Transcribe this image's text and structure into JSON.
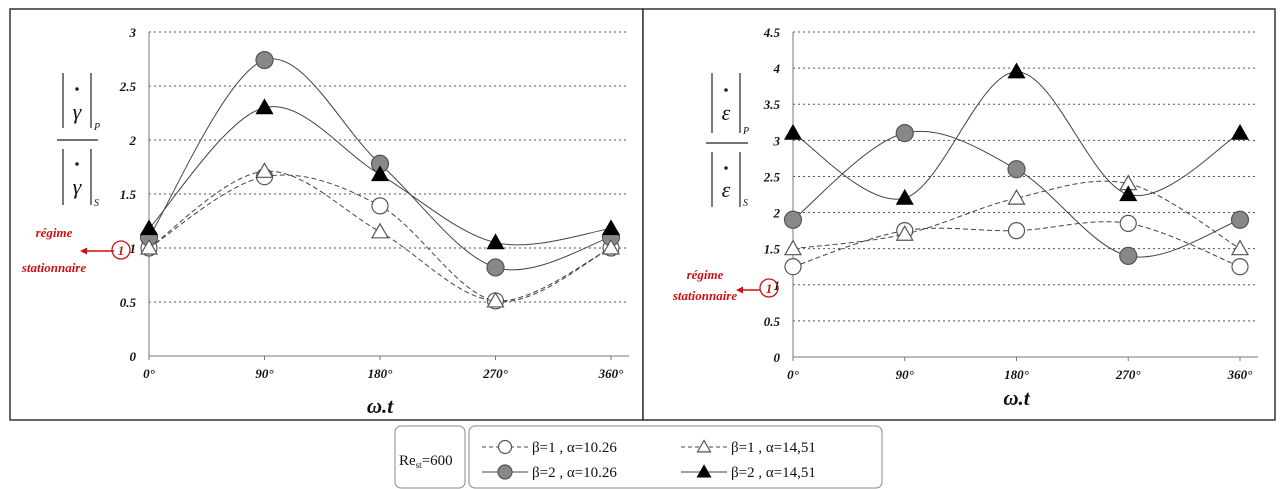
{
  "chart_data": [
    {
      "type": "line",
      "categories": [
        "0°",
        "90°",
        "180°",
        "270°",
        "360°"
      ],
      "xlabel": "ω.t",
      "ylabel": {
        "symbol": "γ",
        "top_sub": "P",
        "bottom_sub": "S"
      },
      "ylim": [
        0,
        3
      ],
      "yticks": [
        "0",
        "0.5",
        "1",
        "1.5",
        "2",
        "2.5",
        "3"
      ],
      "grid": "horizontal dotted",
      "series": [
        {
          "name": "β=1 , α=10.26",
          "values": [
            1.0,
            1.66,
            1.39,
            0.51,
            1.0
          ]
        },
        {
          "name": "β=2 , α=10.26",
          "values": [
            1.1,
            2.74,
            1.78,
            0.82,
            1.1
          ]
        },
        {
          "name": "β=1 , α=14,51",
          "values": [
            1.0,
            1.71,
            1.15,
            0.51,
            1.0
          ]
        },
        {
          "name": "β=2 , α=14,51",
          "values": [
            1.18,
            2.3,
            1.68,
            1.05,
            1.18
          ]
        }
      ],
      "annotation": {
        "line1": "régime",
        "line2": "stationnaire",
        "marker": "1"
      }
    },
    {
      "type": "line",
      "categories": [
        "0°",
        "90°",
        "180°",
        "270°",
        "360°"
      ],
      "xlabel": "ω.t",
      "ylabel": {
        "symbol": "ε",
        "top_sub": "P",
        "bottom_sub": "S"
      },
      "ylim": [
        0,
        4.5
      ],
      "yticks": [
        "0",
        "0.5",
        "1",
        "1.5",
        "2",
        "2.5",
        "3",
        "3.5",
        "4",
        "4.5"
      ],
      "grid": "horizontal dotted",
      "series": [
        {
          "name": "β=1 , α=10.26",
          "values": [
            1.25,
            1.75,
            1.75,
            1.85,
            1.25
          ]
        },
        {
          "name": "β=2 , α=10.26",
          "values": [
            1.9,
            3.1,
            2.6,
            1.4,
            1.9
          ]
        },
        {
          "name": "β=1 , α=14,51",
          "values": [
            1.5,
            1.7,
            2.2,
            2.4,
            1.5
          ]
        },
        {
          "name": "β=2 , α=14,51",
          "values": [
            3.1,
            2.2,
            3.95,
            2.25,
            3.1
          ]
        }
      ],
      "annotation": {
        "line1": "régime",
        "line2": "stationnaire",
        "marker": "1"
      }
    }
  ],
  "legend": {
    "reynolds_label": "Re",
    "reynolds_sub": "st",
    "reynolds_value": "=600",
    "entries": [
      "β=1 , α=10.26",
      "β=1 , α=14,51",
      "β=2 , α=10.26",
      "β=2 , α=14,51"
    ]
  }
}
